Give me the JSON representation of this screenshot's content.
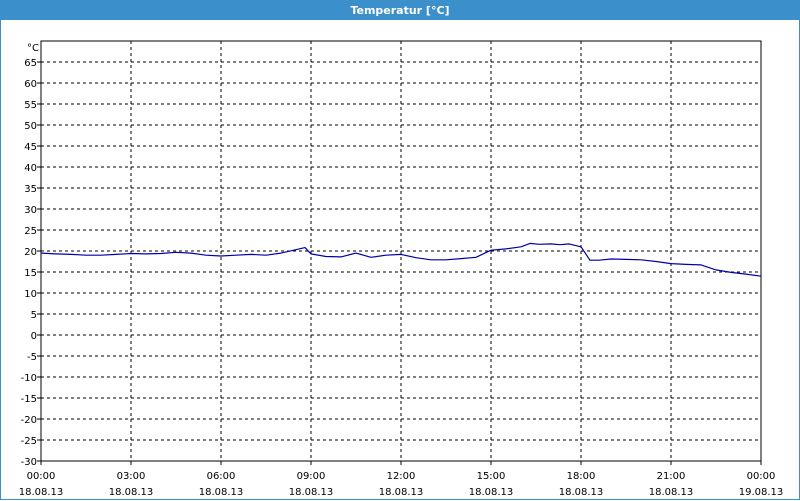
{
  "window": {
    "title": "Temperatur [°C]"
  },
  "chart_data": {
    "type": "line",
    "title": "Temperatur [°C]",
    "ylabel": "°C",
    "ylim": [
      -30,
      70
    ],
    "yticks": [
      65,
      60,
      55,
      50,
      45,
      40,
      35,
      30,
      25,
      20,
      15,
      10,
      5,
      0,
      -5,
      -10,
      -15,
      -20,
      -25,
      -30
    ],
    "xlim": [
      0,
      24
    ],
    "xticks": [
      {
        "x": 0,
        "time": "00:00",
        "date": "18.08.13"
      },
      {
        "x": 3,
        "time": "03:00",
        "date": "18.08.13"
      },
      {
        "x": 6,
        "time": "06:00",
        "date": "18.08.13"
      },
      {
        "x": 9,
        "time": "09:00",
        "date": "18.08.13"
      },
      {
        "x": 12,
        "time": "12:00",
        "date": "18.08.13"
      },
      {
        "x": 15,
        "time": "15:00",
        "date": "18.08.13"
      },
      {
        "x": 18,
        "time": "18:00",
        "date": "18.08.13"
      },
      {
        "x": 21,
        "time": "21:00",
        "date": "18.08.13"
      },
      {
        "x": 24,
        "time": "00:00",
        "date": "19.08.13"
      }
    ],
    "grid": true,
    "series": [
      {
        "color": "#0000aa",
        "x": [
          0,
          0.5,
          1,
          1.5,
          2,
          2.5,
          3,
          3.5,
          4,
          4.5,
          5,
          5.5,
          6,
          6.5,
          7,
          7.5,
          8,
          8.5,
          8.8,
          9,
          9.5,
          10,
          10.5,
          11,
          11.5,
          12,
          12.5,
          13,
          13.5,
          14,
          14.5,
          15,
          15.5,
          16,
          16.3,
          16.6,
          17,
          17.3,
          17.6,
          18,
          18.3,
          18.6,
          19,
          19.5,
          20,
          20.5,
          21,
          21.5,
          22,
          22.5,
          23,
          23.5,
          24
        ],
        "y": [
          19.5,
          19.3,
          19.2,
          19.0,
          19.0,
          19.2,
          19.4,
          19.3,
          19.4,
          19.7,
          19.5,
          19.0,
          18.8,
          19.0,
          19.2,
          19.0,
          19.5,
          20.3,
          20.8,
          19.3,
          18.7,
          18.6,
          19.5,
          18.5,
          19.0,
          19.2,
          18.4,
          17.9,
          17.9,
          18.2,
          18.5,
          20.2,
          20.5,
          21.0,
          21.8,
          21.6,
          21.7,
          21.5,
          21.7,
          21.0,
          17.8,
          17.8,
          18.1,
          18.0,
          17.9,
          17.5,
          17.0,
          16.8,
          16.7,
          15.5,
          14.9,
          14.5,
          14.0
        ]
      }
    ]
  }
}
